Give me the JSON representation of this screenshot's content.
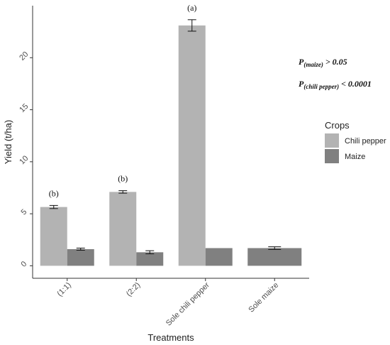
{
  "chart_data": {
    "type": "bar",
    "xlabel": "Treatments",
    "ylabel": "Yield (t/ha)",
    "ylim": [
      -1.2,
      25
    ],
    "yticks": [
      0,
      5,
      10,
      15,
      20
    ],
    "categories": [
      "(1:1)",
      "(2:2)",
      "Sole chili pepper",
      "Sole maize"
    ],
    "series": [
      {
        "name": "Chili pepper",
        "color": "#b3b3b3",
        "values": [
          5.65,
          7.1,
          23.1,
          null
        ],
        "errors": [
          0.15,
          0.12,
          0.55,
          null
        ]
      },
      {
        "name": "Maize",
        "color": "#808080",
        "values": [
          1.6,
          1.3,
          1.7,
          1.7
        ],
        "errors": [
          0.1,
          0.15,
          null,
          0.13
        ]
      }
    ],
    "group_labels": [
      "(b)",
      "(b)",
      "(a)",
      ""
    ],
    "stats": [
      {
        "sub": "(maize)",
        "rest": " > 0.05"
      },
      {
        "sub": "(chili pepper)",
        "rest": " < 0.0001"
      }
    ],
    "stat_prefix": "P",
    "legend": {
      "title": "Crops",
      "placement": "right"
    },
    "grid": false
  }
}
